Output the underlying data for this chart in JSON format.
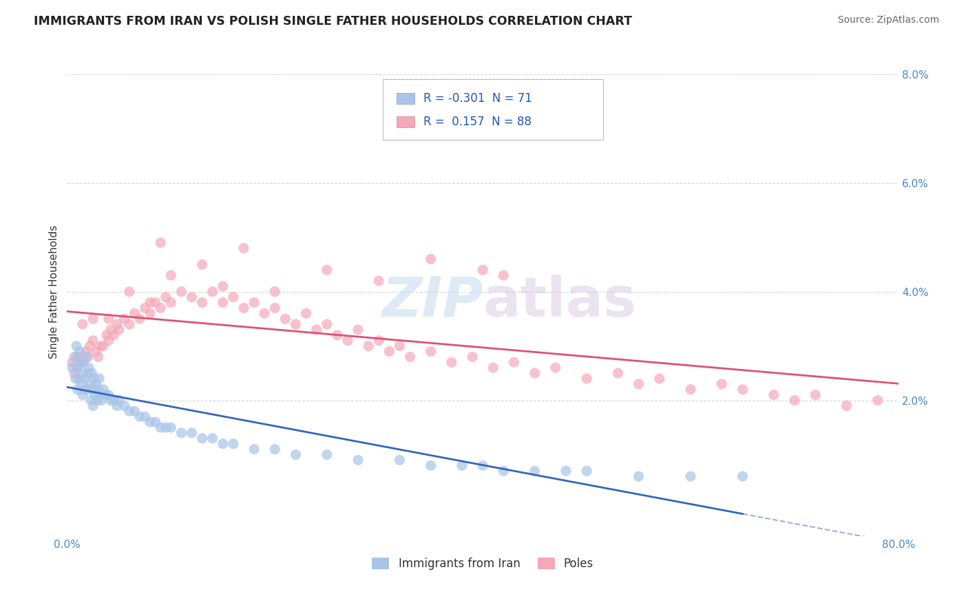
{
  "title": "IMMIGRANTS FROM IRAN VS POLISH SINGLE FATHER HOUSEHOLDS CORRELATION CHART",
  "source": "Source: ZipAtlas.com",
  "ylabel": "Single Father Households",
  "xlim": [
    0.0,
    0.8
  ],
  "ylim": [
    -0.005,
    0.085
  ],
  "xticks": [
    0.0,
    0.1,
    0.2,
    0.3,
    0.4,
    0.5,
    0.6,
    0.7,
    0.8
  ],
  "xticklabels": [
    "0.0%",
    "",
    "",
    "",
    "",
    "",
    "",
    "",
    "80.0%"
  ],
  "yticks_right": [
    0.02,
    0.04,
    0.06,
    0.08
  ],
  "ytick_right_labels": [
    "2.0%",
    "4.0%",
    "6.0%",
    "8.0%"
  ],
  "legend_R1": "-0.301",
  "legend_N1": "71",
  "legend_R2": "0.157",
  "legend_N2": "88",
  "color_iran": "#a8c4e8",
  "color_poles": "#f4a8b8",
  "color_iran_line": "#3366bb",
  "color_poles_line": "#e05070",
  "background_color": "#ffffff",
  "grid_color": "#cccccc",
  "iran_x": [
    0.005,
    0.007,
    0.008,
    0.009,
    0.01,
    0.01,
    0.011,
    0.012,
    0.013,
    0.014,
    0.015,
    0.015,
    0.016,
    0.017,
    0.018,
    0.019,
    0.02,
    0.02,
    0.021,
    0.022,
    0.023,
    0.024,
    0.025,
    0.025,
    0.026,
    0.027,
    0.028,
    0.029,
    0.03,
    0.031,
    0.032,
    0.033,
    0.035,
    0.037,
    0.04,
    0.042,
    0.045,
    0.048,
    0.05,
    0.055,
    0.06,
    0.065,
    0.07,
    0.075,
    0.08,
    0.085,
    0.09,
    0.095,
    0.1,
    0.11,
    0.12,
    0.13,
    0.14,
    0.15,
    0.16,
    0.18,
    0.2,
    0.22,
    0.25,
    0.28,
    0.32,
    0.35,
    0.38,
    0.4,
    0.42,
    0.45,
    0.48,
    0.5,
    0.55,
    0.6,
    0.65
  ],
  "iran_y": [
    0.026,
    0.028,
    0.024,
    0.03,
    0.022,
    0.026,
    0.024,
    0.029,
    0.027,
    0.023,
    0.025,
    0.021,
    0.027,
    0.024,
    0.022,
    0.028,
    0.025,
    0.022,
    0.026,
    0.023,
    0.02,
    0.025,
    0.022,
    0.019,
    0.024,
    0.021,
    0.023,
    0.02,
    0.022,
    0.024,
    0.021,
    0.02,
    0.022,
    0.021,
    0.021,
    0.02,
    0.02,
    0.019,
    0.02,
    0.019,
    0.018,
    0.018,
    0.017,
    0.017,
    0.016,
    0.016,
    0.015,
    0.015,
    0.015,
    0.014,
    0.014,
    0.013,
    0.013,
    0.012,
    0.012,
    0.011,
    0.011,
    0.01,
    0.01,
    0.009,
    0.009,
    0.008,
    0.008,
    0.008,
    0.007,
    0.007,
    0.007,
    0.007,
    0.006,
    0.006,
    0.006
  ],
  "poles_x": [
    0.005,
    0.007,
    0.01,
    0.012,
    0.015,
    0.018,
    0.02,
    0.022,
    0.025,
    0.028,
    0.03,
    0.032,
    0.035,
    0.038,
    0.04,
    0.042,
    0.045,
    0.048,
    0.05,
    0.055,
    0.06,
    0.065,
    0.07,
    0.075,
    0.08,
    0.085,
    0.09,
    0.095,
    0.1,
    0.11,
    0.12,
    0.13,
    0.14,
    0.15,
    0.16,
    0.17,
    0.18,
    0.19,
    0.2,
    0.21,
    0.22,
    0.23,
    0.24,
    0.25,
    0.26,
    0.27,
    0.28,
    0.29,
    0.3,
    0.31,
    0.32,
    0.33,
    0.35,
    0.37,
    0.39,
    0.41,
    0.43,
    0.45,
    0.47,
    0.5,
    0.53,
    0.55,
    0.57,
    0.6,
    0.63,
    0.65,
    0.68,
    0.7,
    0.72,
    0.75,
    0.78,
    0.4,
    0.42,
    0.35,
    0.3,
    0.25,
    0.2,
    0.15,
    0.1,
    0.08,
    0.06,
    0.04,
    0.025,
    0.015,
    0.01,
    0.17,
    0.13,
    0.09
  ],
  "poles_y": [
    0.027,
    0.025,
    0.026,
    0.028,
    0.027,
    0.029,
    0.028,
    0.03,
    0.031,
    0.029,
    0.028,
    0.03,
    0.03,
    0.032,
    0.031,
    0.033,
    0.032,
    0.034,
    0.033,
    0.035,
    0.034,
    0.036,
    0.035,
    0.037,
    0.036,
    0.038,
    0.037,
    0.039,
    0.038,
    0.04,
    0.039,
    0.038,
    0.04,
    0.038,
    0.039,
    0.037,
    0.038,
    0.036,
    0.037,
    0.035,
    0.034,
    0.036,
    0.033,
    0.034,
    0.032,
    0.031,
    0.033,
    0.03,
    0.031,
    0.029,
    0.03,
    0.028,
    0.029,
    0.027,
    0.028,
    0.026,
    0.027,
    0.025,
    0.026,
    0.024,
    0.025,
    0.023,
    0.024,
    0.022,
    0.023,
    0.022,
    0.021,
    0.02,
    0.021,
    0.019,
    0.02,
    0.044,
    0.043,
    0.046,
    0.042,
    0.044,
    0.04,
    0.041,
    0.043,
    0.038,
    0.04,
    0.035,
    0.035,
    0.034,
    0.028,
    0.048,
    0.045,
    0.049
  ]
}
